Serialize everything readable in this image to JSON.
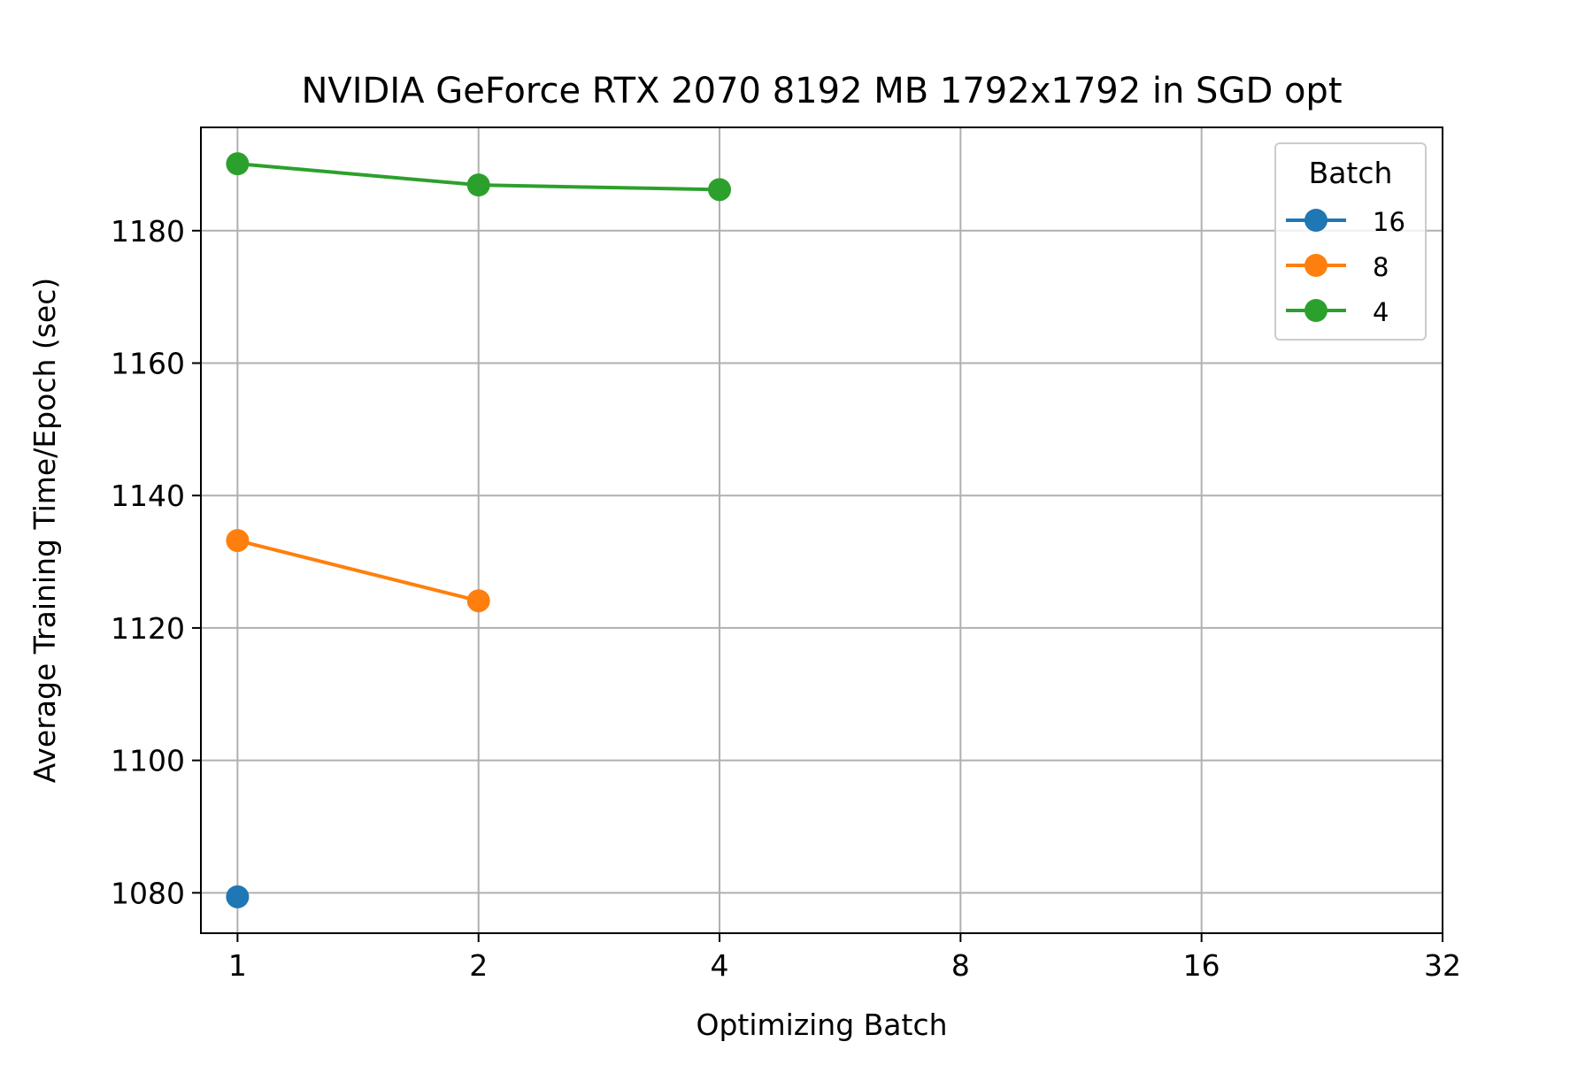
{
  "chart_data": {
    "type": "line",
    "title": "NVIDIA GeForce RTX 2070 8192 MB 1792x1792 in SGD opt",
    "xlabel": "Optimizing Batch",
    "ylabel": "Average Training Time/Epoch (sec)",
    "x_scale": "log2",
    "x_ticks": [
      1,
      2,
      4,
      8,
      16,
      32
    ],
    "x_tick_labels": [
      "1",
      "2",
      "4",
      "8",
      "16",
      "32"
    ],
    "xlim": [
      0.9,
      32
    ],
    "y_ticks": [
      1080,
      1100,
      1120,
      1140,
      1160,
      1180
    ],
    "y_tick_labels": [
      "1080",
      "1100",
      "1120",
      "1140",
      "1160",
      "1180"
    ],
    "ylim": [
      1073.9,
      1195.6
    ],
    "grid": true,
    "legend": {
      "title": "Batch",
      "position": "top-right"
    },
    "series": [
      {
        "name": "16",
        "color": "#1f77b4",
        "x": [
          1
        ],
        "y": [
          1079.4
        ]
      },
      {
        "name": "8",
        "color": "#ff7f0e",
        "x": [
          1,
          2
        ],
        "y": [
          1133.2,
          1124.1
        ]
      },
      {
        "name": "4",
        "color": "#2ca02c",
        "x": [
          1,
          2,
          4
        ],
        "y": [
          1190.1,
          1186.9,
          1186.2
        ]
      }
    ]
  }
}
